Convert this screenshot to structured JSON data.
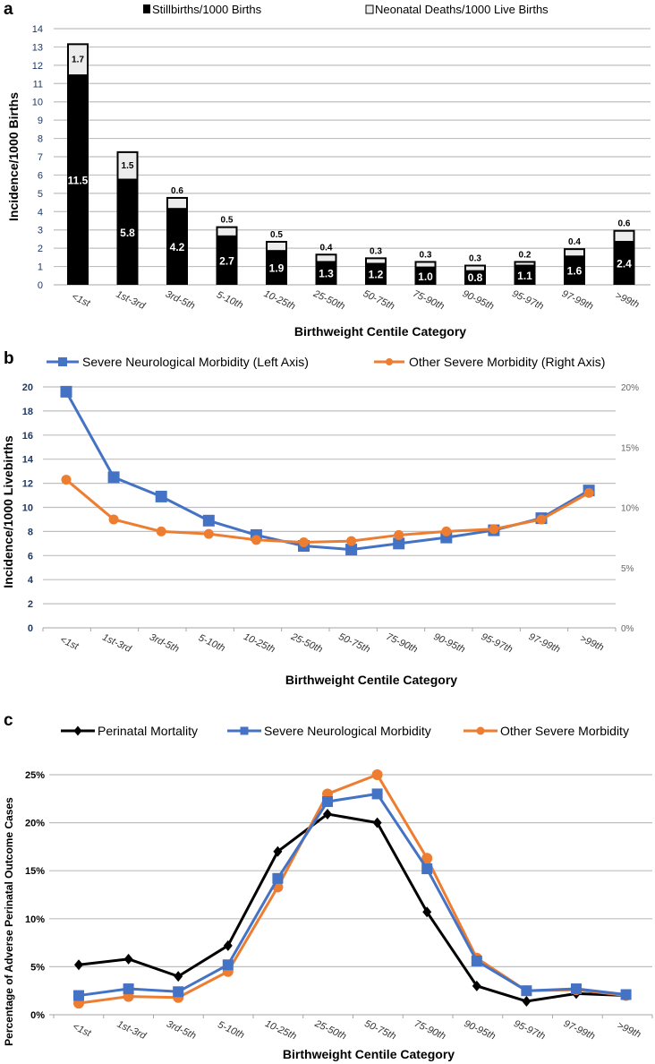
{
  "chart_data": [
    {
      "panel_label": "a",
      "type": "bar",
      "stacked": true,
      "categories": [
        "<1st",
        "1st-3rd",
        "3rd-5th",
        "5-10th",
        "10-25th",
        "25-50th",
        "50-75th",
        "75-90th",
        "90-95th",
        "95-97th",
        "97-99th",
        ">99th"
      ],
      "series": [
        {
          "name": "Stillbirths/1000 Births",
          "color": "#000000",
          "values": [
            11.5,
            5.8,
            4.2,
            2.7,
            1.9,
            1.3,
            1.2,
            1.0,
            0.8,
            1.1,
            1.6,
            2.4
          ]
        },
        {
          "name": "Neonatal Deaths/1000 Live Births",
          "color": "#e8e8e8",
          "values": [
            1.7,
            1.5,
            0.6,
            0.5,
            0.5,
            0.4,
            0.3,
            0.3,
            0.3,
            0.2,
            0.4,
            0.6
          ]
        }
      ],
      "xlabel": "Birthweight Centile Category",
      "ylabel": "Incidence/1000 Births",
      "ylim": [
        0,
        14
      ],
      "yticks": [
        0,
        1,
        2,
        3,
        4,
        5,
        6,
        7,
        8,
        9,
        10,
        11,
        12,
        13,
        14
      ],
      "grid": true,
      "legend": "top"
    },
    {
      "panel_label": "b",
      "type": "line",
      "categories": [
        "<1st",
        "1st-3rd",
        "3rd-5th",
        "5-10th",
        "10-25th",
        "25-50th",
        "50-75th",
        "75-90th",
        "90-95th",
        "95-97th",
        "97-99th",
        ">99th"
      ],
      "series": [
        {
          "name": "Severe Neurological Morbidity (Left Axis)",
          "axis": "left",
          "marker": "square",
          "color": "#4472c4",
          "values": [
            19.6,
            12.5,
            10.9,
            8.9,
            7.7,
            6.8,
            6.5,
            7.0,
            7.5,
            8.1,
            9.1,
            11.4
          ]
        },
        {
          "name": "Other Severe Morbidity (Right Axis)",
          "axis": "right",
          "marker": "circle",
          "color": "#ed7d31",
          "values": [
            12.3,
            9.0,
            8.0,
            7.8,
            7.3,
            7.1,
            7.2,
            7.7,
            8.0,
            8.2,
            9.0,
            11.2
          ]
        }
      ],
      "xlabel": "Birthweight Centile Category",
      "ylabel": "Incidence/1000 Livebirths",
      "ylim": [
        0,
        20
      ],
      "yticks": [
        "0",
        "2",
        "4",
        "6",
        "8",
        "10",
        "12",
        "14",
        "16",
        "18",
        "20"
      ],
      "y2lim": [
        0,
        20
      ],
      "y2ticks": [
        "0%",
        "5%",
        "10%",
        "15%",
        "20%"
      ],
      "grid": true,
      "legend": "top"
    },
    {
      "panel_label": "c",
      "type": "line",
      "categories": [
        "<1st",
        "1st-3rd",
        "3rd-5th",
        "5-10th",
        "10-25th",
        "25-50th",
        "50-75th",
        "75-90th",
        "90-95th",
        "95-97th",
        "97-99th",
        ">99th"
      ],
      "series": [
        {
          "name": "Perinatal Mortality",
          "marker": "diamond",
          "color": "#000000",
          "values": [
            5.2,
            5.8,
            4.0,
            7.2,
            17.0,
            20.9,
            20.0,
            10.7,
            3.0,
            1.4,
            2.2,
            2.0
          ]
        },
        {
          "name": "Severe Neurological Morbidity",
          "marker": "square",
          "color": "#4472c4",
          "values": [
            2.0,
            2.7,
            2.4,
            5.2,
            14.2,
            22.2,
            23.0,
            15.2,
            5.6,
            2.5,
            2.7,
            2.1
          ]
        },
        {
          "name": "Other Severe Morbidity",
          "marker": "circle",
          "color": "#ed7d31",
          "values": [
            1.2,
            1.9,
            1.8,
            4.5,
            13.3,
            23.0,
            25.0,
            16.3,
            5.9,
            2.5,
            2.6,
            2.0
          ]
        }
      ],
      "xlabel": "Birthweight Centile Category",
      "ylabel": "Percentage of Adverse Perinatal Outcome Cases",
      "ylim": [
        0,
        25
      ],
      "yticks": [
        "0%",
        "5%",
        "10%",
        "15%",
        "20%",
        "25%"
      ],
      "grid": true,
      "legend": "top"
    }
  ]
}
